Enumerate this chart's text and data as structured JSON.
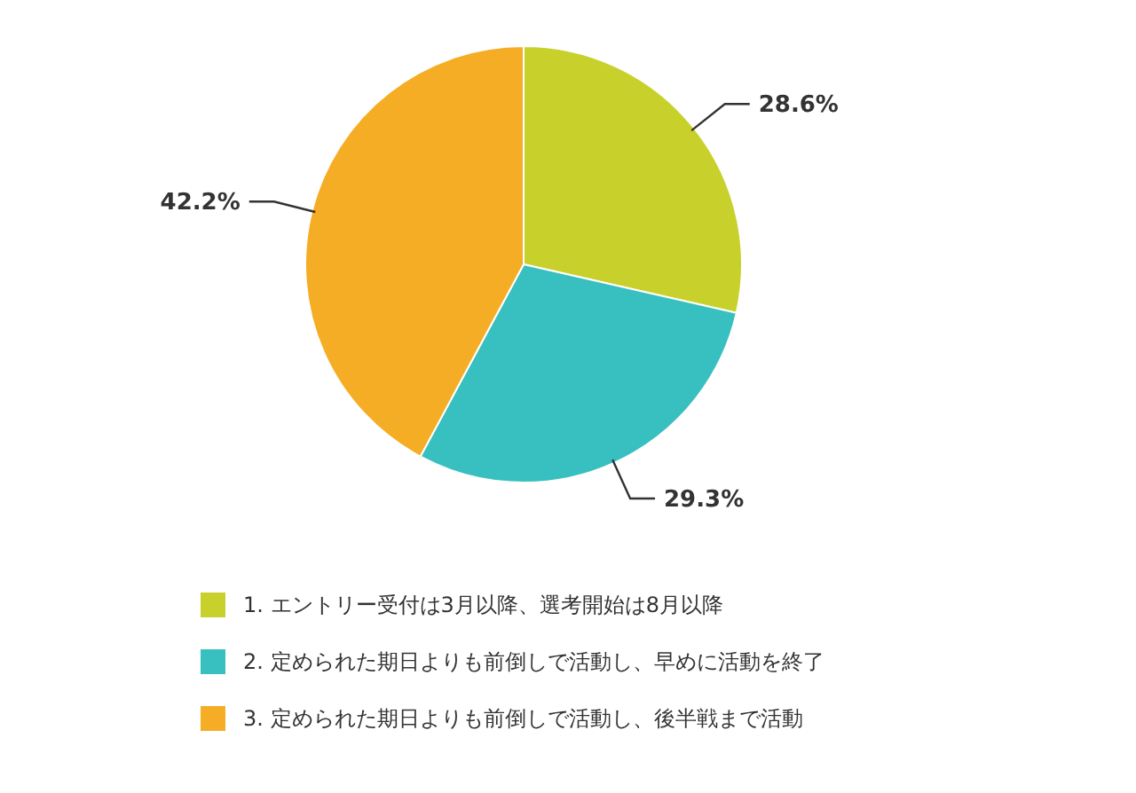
{
  "chart_data": {
    "type": "pie",
    "categories": [
      "1. エントリー受付は3月以降、選考開始は8月以降",
      "2. 定められた期日よりも前倒しで活動し、早めに活動を終了",
      "3. 定められた期日よりも前倒しで活動し、後半戦まで活動"
    ],
    "values": [
      28.6,
      29.3,
      42.2
    ],
    "colors": [
      "#c8d12c",
      "#38bfc0",
      "#f5ad25"
    ],
    "value_labels": [
      "28.6%",
      "29.3%",
      "42.2%"
    ],
    "legend": "bottom"
  }
}
